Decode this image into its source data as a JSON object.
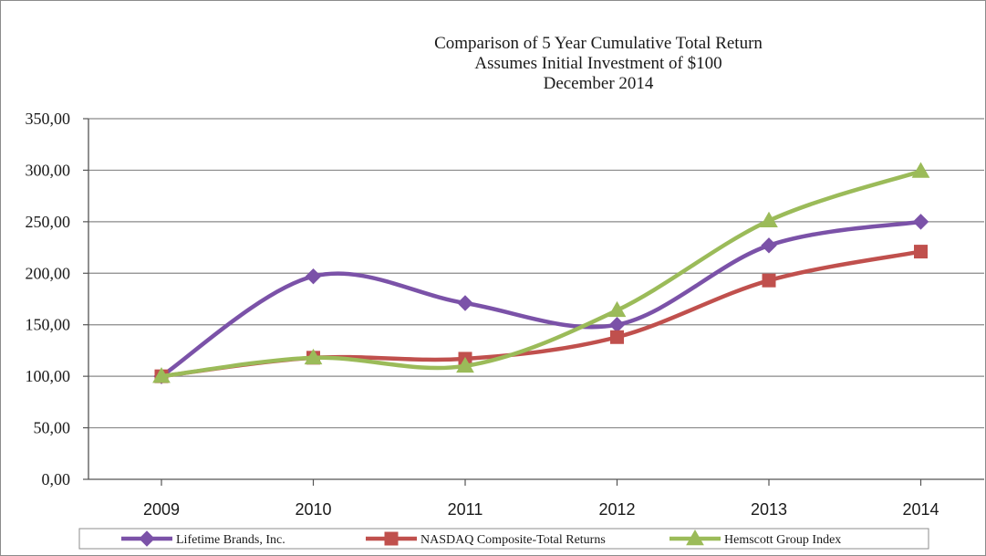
{
  "chart_data": {
    "type": "line",
    "title_lines": [
      "Comparison of 5 Year Cumulative Total Return",
      "Assumes Initial Investment of $100",
      "December 2014"
    ],
    "xlabel": "",
    "ylabel": "",
    "categories": [
      "2009",
      "2010",
      "2011",
      "2012",
      "2013",
      "2014"
    ],
    "ylim": [
      0,
      350
    ],
    "yticks": [
      0,
      50,
      100,
      150,
      200,
      250,
      300,
      350
    ],
    "ytick_labels": [
      "0,00",
      "50,00",
      "100,00",
      "150,00",
      "200,00",
      "250,00",
      "300,00",
      "350,00"
    ],
    "grid": true,
    "legend_position": "bottom",
    "series": [
      {
        "name": "Lifetime Brands, Inc.",
        "color": "#7b52a8",
        "marker": "diamond",
        "values": [
          100,
          197,
          171,
          150,
          227,
          250
        ]
      },
      {
        "name": "NASDAQ Composite-Total Returns",
        "color": "#c0504d",
        "marker": "square",
        "values": [
          100,
          118,
          117,
          138,
          193,
          221
        ]
      },
      {
        "name": "Hemscott Group Index",
        "color": "#9bbb59",
        "marker": "triangle",
        "values": [
          100,
          118,
          110,
          164,
          251,
          299
        ]
      }
    ]
  }
}
